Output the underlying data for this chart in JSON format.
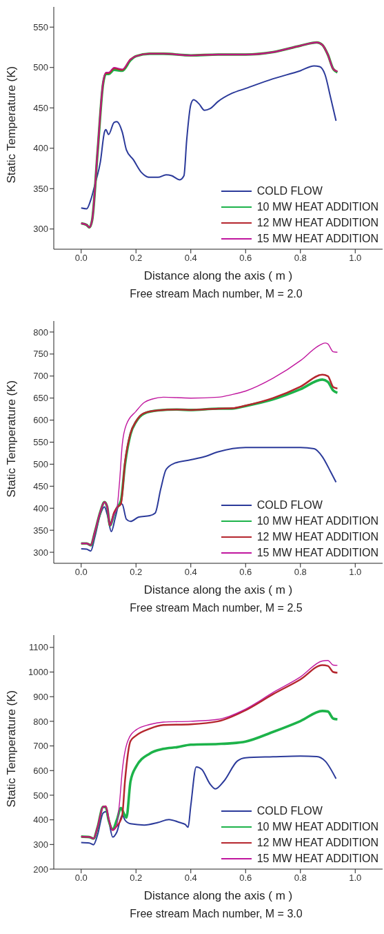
{
  "chart_data": [
    {
      "type": "line",
      "xlabel": "Distance along the axis ( m )",
      "ylabel": "Static Temperature (K)",
      "annotations": [
        "Free stream Mach number, M = 2.0"
      ],
      "xlim": [
        -0.1,
        1.1
      ],
      "xticks": [
        {
          "value": 0,
          "label": "0.0"
        },
        {
          "value": 0.2,
          "label": "0.2"
        },
        {
          "value": 0.4,
          "label": "0.4"
        },
        {
          "value": 0.6,
          "label": "0.6"
        },
        {
          "value": 0.8,
          "label": "0.8"
        },
        {
          "value": 1,
          "label": "1.0"
        }
      ],
      "ylim": [
        275,
        575
      ],
      "yticks": [
        300,
        350,
        400,
        450,
        500,
        550
      ],
      "legend": "bottom right",
      "marker": "none",
      "series": [
        {
          "name": "COLD FLOW",
          "color": "#2b3a9a",
          "x": [
            0,
            0.02,
            0.035,
            0.05,
            0.07,
            0.085,
            0.09,
            0.1,
            0.12,
            0.13,
            0.15,
            0.165,
            0.19,
            0.22,
            0.25,
            0.28,
            0.31,
            0.33,
            0.36,
            0.375,
            0.385,
            0.4,
            0.41,
            0.43,
            0.45,
            0.47,
            0.5,
            0.55,
            0.6,
            0.7,
            0.8,
            0.85,
            0.87,
            0.89,
            0.91,
            0.93
          ],
          "values": [
            326,
            325,
            336,
            355,
            383,
            420,
            423,
            417,
            432,
            433,
            420,
            398,
            386,
            370,
            364,
            364,
            367,
            366,
            361,
            366,
            410,
            454,
            460,
            455,
            447,
            449,
            458,
            468,
            474,
            486,
            496,
            502,
            501,
            491,
            463,
            434
          ]
        },
        {
          "name": "10 MW HEAT ADDITION",
          "color": "#1db34a",
          "x": [
            0,
            0.02,
            0.03,
            0.04,
            0.06,
            0.08,
            0.09,
            0.1,
            0.12,
            0.15,
            0.18,
            0.2,
            0.25,
            0.3,
            0.4,
            0.5,
            0.6,
            0.7,
            0.8,
            0.86,
            0.88,
            0.9,
            0.92,
            0.935
          ],
          "values": [
            307,
            305,
            302,
            311,
            396,
            480,
            492,
            492,
            497,
            496,
            509,
            514,
            517,
            517,
            515,
            516,
            516,
            519,
            527,
            531,
            528,
            516,
            498,
            494
          ]
        },
        {
          "name": "12 MW HEAT ADDITION",
          "color": "#b5262e",
          "x": [
            0,
            0.02,
            0.03,
            0.04,
            0.06,
            0.08,
            0.09,
            0.1,
            0.12,
            0.15,
            0.18,
            0.2,
            0.25,
            0.3,
            0.4,
            0.5,
            0.6,
            0.7,
            0.8,
            0.86,
            0.88,
            0.9,
            0.92,
            0.935
          ],
          "values": [
            307,
            305,
            302,
            311,
            397,
            481,
            493,
            493,
            499,
            497,
            510,
            514,
            517,
            517,
            515,
            516,
            516,
            519,
            527,
            531,
            528,
            516,
            498,
            495
          ]
        },
        {
          "name": "15 MW HEAT ADDITION",
          "color": "#c0169e",
          "x": [
            0,
            0.02,
            0.03,
            0.04,
            0.06,
            0.08,
            0.09,
            0.1,
            0.12,
            0.15,
            0.18,
            0.2,
            0.25,
            0.3,
            0.4,
            0.5,
            0.6,
            0.7,
            0.8,
            0.86,
            0.88,
            0.9,
            0.92,
            0.935
          ],
          "values": [
            307,
            305,
            302,
            311,
            398,
            482,
            494,
            494,
            500,
            498,
            510,
            514,
            517,
            517,
            515,
            516,
            516,
            519,
            527,
            531,
            528,
            516,
            498,
            495
          ]
        }
      ]
    },
    {
      "type": "line",
      "xlabel": "Distance along the axis ( m )",
      "ylabel": "Static Temperature (K)",
      "annotations": [
        "Free stream Mach number, M = 2.5"
      ],
      "xlim": [
        -0.1,
        1.1
      ],
      "xticks": [
        {
          "value": 0,
          "label": "0.0"
        },
        {
          "value": 0.2,
          "label": "0.2"
        },
        {
          "value": 0.4,
          "label": "0.4"
        },
        {
          "value": 0.6,
          "label": "0.6"
        },
        {
          "value": 0.8,
          "label": "0.8"
        },
        {
          "value": 1,
          "label": "1.0"
        }
      ],
      "ylim": [
        275,
        825
      ],
      "yticks": [
        300,
        350,
        400,
        450,
        500,
        550,
        600,
        650,
        700,
        750,
        800
      ],
      "legend": "bottom right",
      "marker": "none",
      "series": [
        {
          "name": "COLD FLOW",
          "color": "#2b3a9a",
          "x": [
            0,
            0.02,
            0.035,
            0.05,
            0.07,
            0.085,
            0.095,
            0.11,
            0.125,
            0.14,
            0.15,
            0.165,
            0.18,
            0.21,
            0.25,
            0.27,
            0.29,
            0.31,
            0.34,
            0.4,
            0.45,
            0.5,
            0.6,
            0.7,
            0.8,
            0.85,
            0.88,
            0.91,
            0.93
          ],
          "values": [
            308,
            307,
            303,
            335,
            386,
            403,
            386,
            347,
            380,
            411,
            409,
            375,
            370,
            380,
            383,
            389,
            443,
            488,
            502,
            510,
            517,
            528,
            538,
            538,
            538,
            535,
            517,
            483,
            459
          ]
        },
        {
          "name": "10 MW HEAT ADDITION",
          "color": "#1db34a",
          "x": [
            0,
            0.02,
            0.035,
            0.05,
            0.07,
            0.085,
            0.095,
            0.105,
            0.12,
            0.13,
            0.145,
            0.16,
            0.18,
            0.2,
            0.23,
            0.28,
            0.35,
            0.4,
            0.5,
            0.55,
            0.6,
            0.7,
            0.8,
            0.88,
            0.9,
            0.92,
            0.935
          ],
          "values": [
            320,
            320,
            316,
            346,
            392,
            414,
            403,
            361,
            386,
            400,
            417,
            500,
            568,
            596,
            615,
            622,
            624,
            623,
            626,
            626,
            632,
            647,
            670,
            692,
            687,
            667,
            662
          ]
        },
        {
          "name": "12 MW HEAT ADDITION",
          "color": "#b5262e",
          "x": [
            0,
            0.02,
            0.035,
            0.05,
            0.07,
            0.085,
            0.095,
            0.105,
            0.12,
            0.13,
            0.145,
            0.16,
            0.18,
            0.2,
            0.23,
            0.28,
            0.35,
            0.4,
            0.5,
            0.55,
            0.6,
            0.7,
            0.8,
            0.88,
            0.9,
            0.92,
            0.935
          ],
          "values": [
            320,
            320,
            316,
            346,
            392,
            414,
            403,
            361,
            390,
            401,
            410,
            505,
            570,
            597,
            616,
            622,
            624,
            623,
            626,
            627,
            633,
            650,
            676,
            703,
            700,
            675,
            672
          ]
        },
        {
          "name": "15 MW HEAT ADDITION",
          "color": "#c0169e",
          "x": [
            0,
            0.02,
            0.035,
            0.05,
            0.07,
            0.085,
            0.095,
            0.105,
            0.12,
            0.13,
            0.14,
            0.15,
            0.165,
            0.2,
            0.23,
            0.26,
            0.3,
            0.4,
            0.5,
            0.55,
            0.6,
            0.7,
            0.8,
            0.87,
            0.89,
            0.9,
            0.92,
            0.935
          ],
          "values": [
            320,
            320,
            316,
            346,
            392,
            414,
            403,
            361,
            386,
            398,
            460,
            545,
            590,
            620,
            640,
            648,
            652,
            650,
            652,
            658,
            666,
            695,
            735,
            770,
            775,
            773,
            755,
            754
          ]
        }
      ]
    },
    {
      "type": "line",
      "xlabel": "Distance along the axis ( m )",
      "ylabel": "Static Temperature (K)",
      "annotations": [
        "Free stream Mach number, M = 3.0"
      ],
      "xlim": [
        -0.1,
        1.1
      ],
      "xticks": [
        {
          "value": 0,
          "label": "0.0"
        },
        {
          "value": 0.2,
          "label": "0.2"
        },
        {
          "value": 0.4,
          "label": "0.4"
        },
        {
          "value": 0.6,
          "label": "0.6"
        },
        {
          "value": 0.8,
          "label": "0.8"
        },
        {
          "value": 1,
          "label": "1.0"
        }
      ],
      "ylim": [
        200,
        1150
      ],
      "yticks": [
        200,
        300,
        400,
        500,
        600,
        700,
        800,
        900,
        1000,
        1100
      ],
      "legend": "bottom right",
      "marker": "none",
      "series": [
        {
          "name": "COLD FLOW",
          "color": "#2b3a9a",
          "x": [
            0,
            0.03,
            0.045,
            0.06,
            0.08,
            0.09,
            0.1,
            0.115,
            0.13,
            0.15,
            0.16,
            0.18,
            0.23,
            0.28,
            0.32,
            0.36,
            0.38,
            0.39,
            0.4,
            0.42,
            0.44,
            0.47,
            0.49,
            0.52,
            0.57,
            0.6,
            0.7,
            0.8,
            0.86,
            0.89,
            0.93
          ],
          "values": [
            308,
            306,
            299,
            340,
            428,
            433,
            399,
            330,
            350,
            419,
            399,
            384,
            379,
            389,
            401,
            389,
            381,
            370,
            458,
            615,
            605,
            546,
            526,
            556,
            639,
            652,
            656,
            659,
            657,
            639,
            567
          ]
        },
        {
          "name": "10 MW HEAT ADDITION",
          "color": "#1db34a",
          "x": [
            0,
            0.03,
            0.045,
            0.06,
            0.08,
            0.09,
            0.1,
            0.115,
            0.13,
            0.145,
            0.155,
            0.165,
            0.18,
            0.2,
            0.25,
            0.3,
            0.35,
            0.4,
            0.5,
            0.55,
            0.6,
            0.7,
            0.8,
            0.88,
            0.9,
            0.92,
            0.935
          ],
          "values": [
            332,
            330,
            324,
            370,
            453,
            450,
            399,
            362,
            399,
            448,
            428,
            409,
            556,
            615,
            669,
            688,
            695,
            705,
            708,
            711,
            718,
            757,
            801,
            842,
            840,
            811,
            808
          ]
        },
        {
          "name": "12 MW HEAT ADDITION",
          "color": "#b5262e",
          "x": [
            0,
            0.03,
            0.045,
            0.06,
            0.08,
            0.09,
            0.1,
            0.115,
            0.13,
            0.14,
            0.15,
            0.16,
            0.18,
            0.2,
            0.25,
            0.3,
            0.4,
            0.5,
            0.6,
            0.7,
            0.8,
            0.88,
            0.9,
            0.92,
            0.935
          ],
          "values": [
            332,
            330,
            324,
            370,
            453,
            455,
            405,
            358,
            375,
            390,
            420,
            560,
            720,
            742,
            770,
            785,
            788,
            800,
            845,
            910,
            970,
            1028,
            1025,
            1000,
            997
          ]
        },
        {
          "name": "15 MW HEAT ADDITION",
          "color": "#c0169e",
          "x": [
            0,
            0.03,
            0.045,
            0.06,
            0.08,
            0.09,
            0.1,
            0.115,
            0.13,
            0.14,
            0.15,
            0.17,
            0.2,
            0.25,
            0.3,
            0.4,
            0.5,
            0.6,
            0.7,
            0.8,
            0.88,
            0.9,
            0.92,
            0.935
          ],
          "values": [
            332,
            330,
            324,
            370,
            453,
            455,
            405,
            358,
            380,
            470,
            600,
            720,
            765,
            787,
            797,
            800,
            808,
            850,
            917,
            980,
            1045,
            1047,
            1028,
            1027
          ]
        }
      ]
    }
  ]
}
